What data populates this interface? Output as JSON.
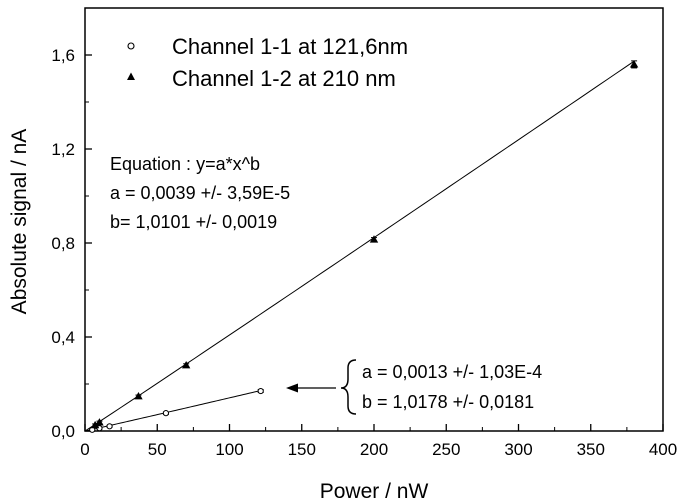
{
  "chart_data": {
    "type": "scatter",
    "title": "",
    "xlabel": "Power / nW",
    "ylabel": "Absolute signal / nA",
    "xlim": [
      0,
      400
    ],
    "ylim": [
      0,
      1.8
    ],
    "x_ticks": [
      0,
      50,
      100,
      150,
      200,
      250,
      300,
      350,
      400
    ],
    "x_tick_labels": [
      "0",
      "50",
      "100",
      "150",
      "200",
      "250",
      "300",
      "350",
      "400"
    ],
    "y_ticks": [
      0,
      0.4,
      0.8,
      1.2,
      1.6
    ],
    "y_tick_labels": [
      "0,0",
      "0,4",
      "0,8",
      "1,2",
      "1,6"
    ],
    "grid": false,
    "legend_position": "top-left",
    "series": [
      {
        "name": "Channel 1-1 at 121,6nm",
        "marker": "open-circle",
        "points": [
          {
            "x": 5,
            "y": 0.005,
            "err": 0.004
          },
          {
            "x": 10,
            "y": 0.012,
            "err": 0.004
          },
          {
            "x": 17,
            "y": 0.02,
            "err": 0.004
          },
          {
            "x": 56,
            "y": 0.076,
            "err": 0.005
          },
          {
            "x": 121.6,
            "y": 0.17,
            "err": 0.006
          }
        ],
        "fit": {
          "a": 0.0013,
          "b": 1.0178,
          "x_range": [
            0,
            121.6
          ]
        }
      },
      {
        "name": "Channel 1-2 at 210 nm",
        "marker": "filled-triangle",
        "points": [
          {
            "x": 7,
            "y": 0.025,
            "err": 0.005
          },
          {
            "x": 10,
            "y": 0.037,
            "err": 0.005
          },
          {
            "x": 37,
            "y": 0.148,
            "err": 0.005
          },
          {
            "x": 70,
            "y": 0.28,
            "err": 0.006
          },
          {
            "x": 200,
            "y": 0.815,
            "err": 0.008
          },
          {
            "x": 380,
            "y": 1.56,
            "err": 0.015
          }
        ],
        "fit": {
          "a": 0.0039,
          "b": 1.0101,
          "x_range": [
            0,
            380
          ]
        }
      }
    ],
    "annotations": {
      "channel_1_2_fit": {
        "line1": "Equation :  y=a*x^b",
        "line2": "a = 0,0039 +/- 3,59E-5",
        "line3": "b= 1,0101  +/- 0,0019"
      },
      "channel_1_1_fit": {
        "line1": "a = 0,0013  +/- 1,03E-4",
        "line2": "b = 1,0178  +/- 0,0181"
      }
    }
  }
}
